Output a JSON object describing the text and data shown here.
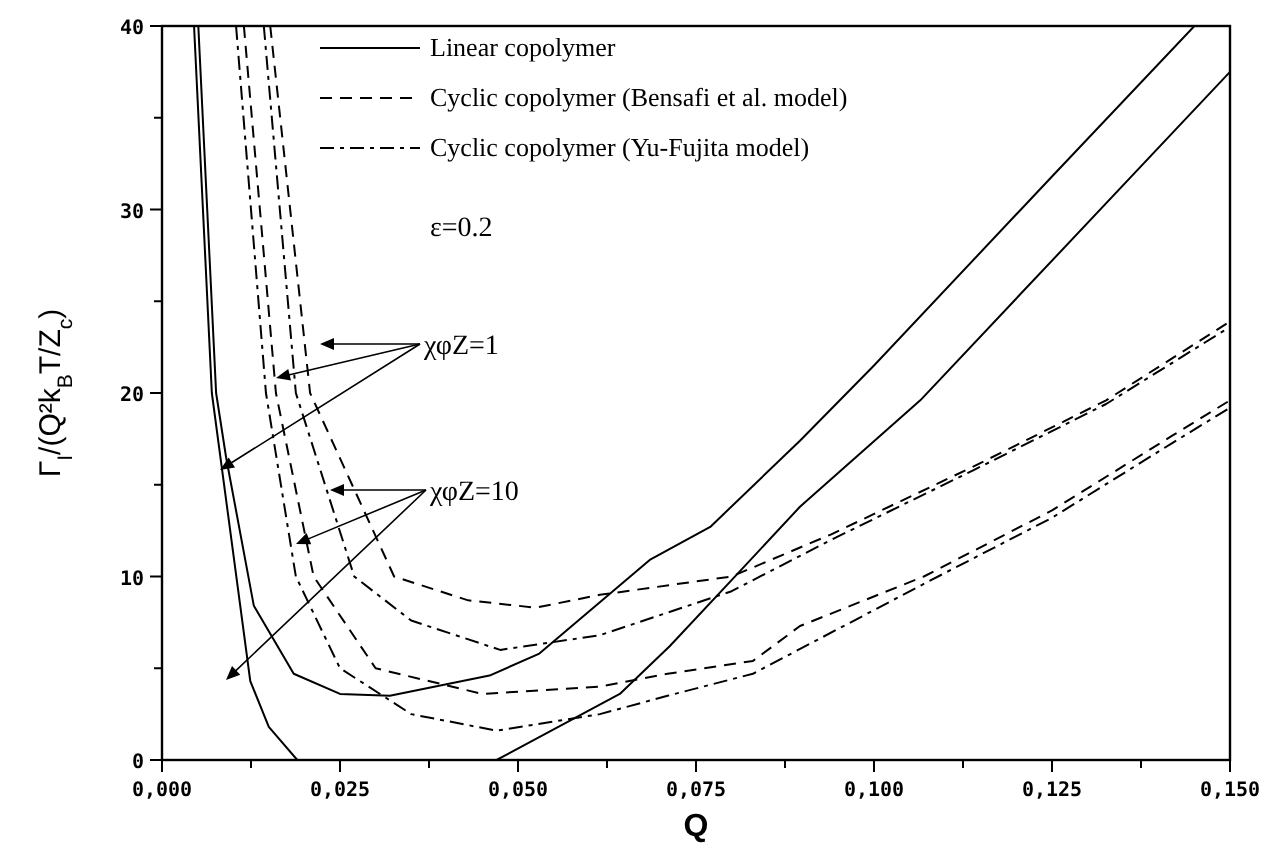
{
  "chart_data": {
    "type": "line",
    "xlabel": "Q",
    "ylabel": "Γ$_{I}$/(Q²k$_{B}$T/Z$_{c}$)",
    "xlim": [
      0,
      0.15
    ],
    "xticks": [
      {
        "value": 0,
        "label": "0,000"
      },
      {
        "value": 0.0125,
        "label": null
      },
      {
        "value": 0.025,
        "label": "0,025"
      },
      {
        "value": 0.0375,
        "label": null
      },
      {
        "value": 0.05,
        "label": "0,050"
      },
      {
        "value": 0.0625,
        "label": null
      },
      {
        "value": 0.075,
        "label": "0,075"
      },
      {
        "value": 0.0875,
        "label": null
      },
      {
        "value": 0.1,
        "label": "0,100"
      },
      {
        "value": 0.1125,
        "label": null
      },
      {
        "value": 0.125,
        "label": "0,125"
      },
      {
        "value": 0.1375,
        "label": null
      },
      {
        "value": 0.15,
        "label": "0,150"
      }
    ],
    "ylim": [
      0,
      40
    ],
    "yticks": [
      0,
      {
        "value": 5,
        "label": null
      },
      10,
      {
        "value": 15,
        "label": null
      },
      20,
      {
        "value": 25,
        "label": null
      },
      30,
      {
        "value": 35,
        "label": null
      },
      40
    ],
    "grid": false,
    "legend": "top",
    "marker": "none",
    "annotations": [
      "ε=0.2",
      "χφZ=1",
      "χφZ=10"
    ],
    "series": [
      {
        "name": "Linear copolymer",
        "color": "#000000",
        "line_style": "solid",
        "x": [
          0.0051,
          0.0076,
          0.009,
          0.0129,
          0.0185,
          0.025,
          0.032,
          0.046,
          0.053,
          0.0685,
          0.077,
          0.0896,
          0.1,
          0.125,
          0.145
        ],
        "values": [
          40,
          20,
          16.5,
          8.4,
          4.7,
          3.6,
          3.5,
          4.6,
          5.8,
          10.9,
          12.7,
          17.4,
          21.5,
          31.8,
          40
        ]
      },
      {
        "name": "Cyclic copolymer (Bensafi et al. model)",
        "color": "#000000",
        "line_style": "dashed",
        "x": [
          0.0152,
          0.0208,
          0.0326,
          0.043,
          0.0525,
          0.0615,
          0.08,
          0.094,
          0.114,
          0.1326,
          0.15
        ],
        "values": [
          40,
          20,
          10,
          8.7,
          8.3,
          9.0,
          10.0,
          12.3,
          16.0,
          19.6,
          23.9
        ]
      },
      {
        "name": "Cyclic copolymer (Yu-Fujita model)",
        "color": "#000000",
        "line_style": "dashdot",
        "x": [
          0.0143,
          0.0188,
          0.027,
          0.035,
          0.0475,
          0.0615,
          0.08,
          0.094,
          0.114,
          0.1326,
          0.15
        ],
        "values": [
          40,
          20,
          10,
          7.6,
          6.0,
          6.8,
          9.2,
          12.0,
          15.8,
          19.4,
          23.6
        ]
      },
      {
        "color": "#000000",
        "line_style": "solid",
        "x": [
          0.0045,
          0.007,
          0.0124,
          0.015,
          0.019,
          0.033,
          0.047,
          0.0643,
          0.0713,
          0.08,
          0.0896,
          0.1065,
          0.15
        ],
        "values": [
          40,
          20,
          4.3,
          1.8,
          0,
          null,
          0,
          3.6,
          6.2,
          9.8,
          13.8,
          19.6,
          37.5
        ]
      },
      {
        "color": "#000000",
        "line_style": "dashed",
        "x": [
          0.0115,
          0.016,
          0.0213,
          0.03,
          0.045,
          0.0615,
          0.071,
          0.083,
          0.0896,
          0.107,
          0.125,
          0.142,
          0.15
        ],
        "values": [
          40,
          20,
          10,
          5,
          3.6,
          4.0,
          4.7,
          5.4,
          7.3,
          10.0,
          13.6,
          17.7,
          19.6
        ]
      },
      {
        "color": "#000000",
        "line_style": "dashdot",
        "x": [
          0.0104,
          0.0146,
          0.0188,
          0.025,
          0.035,
          0.047,
          0.0615,
          0.071,
          0.083,
          0.107,
          0.125,
          0.142,
          0.15
        ],
        "values": [
          40,
          20,
          10,
          5,
          2.5,
          1.6,
          2.5,
          3.5,
          4.7,
          9.6,
          13.2,
          17.3,
          19.2
        ]
      }
    ]
  }
}
